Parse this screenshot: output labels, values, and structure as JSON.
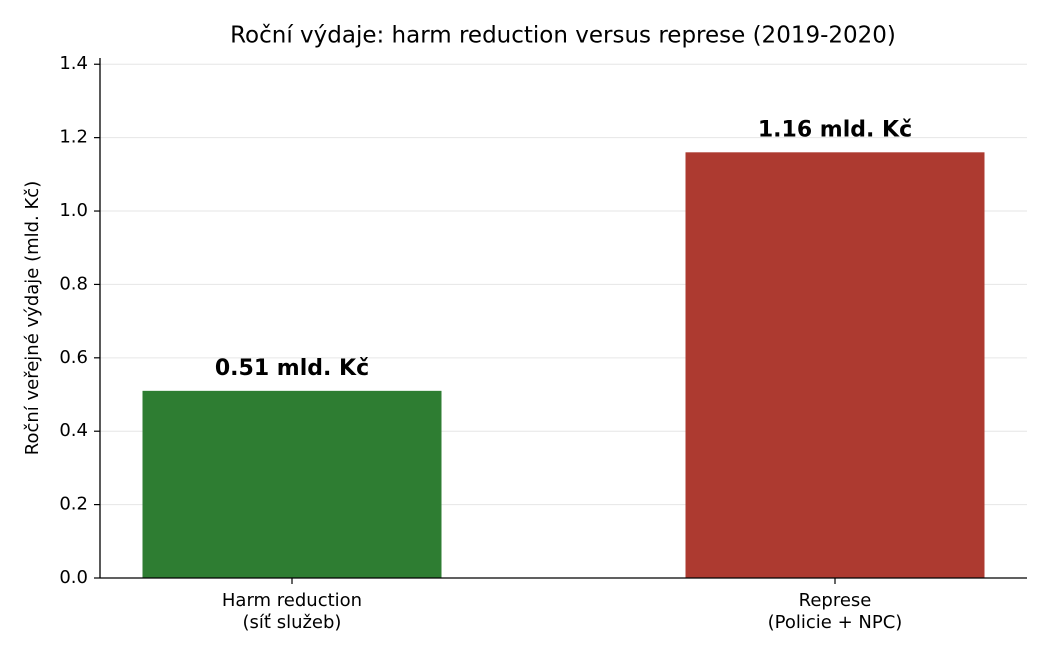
{
  "chart_data": {
    "type": "bar",
    "title": "Roční výdaje: harm reduction versus represe (2019-2020)",
    "ylabel": "Roční veřejné výdaje (mld. Kč)",
    "categories": [
      "Harm reduction\n(síť služeb)",
      "Represe\n(Policie + NPC)"
    ],
    "values": [
      0.51,
      1.16
    ],
    "value_labels": [
      "0.51 mld. Kč",
      "1.16 mld. Kč"
    ],
    "colors": [
      "#2e7d32",
      "#ad3a30"
    ],
    "ylim": [
      0,
      1.417
    ],
    "yticks": [
      {
        "value": 0,
        "label": "0.0"
      },
      0.2,
      0.4,
      0.6,
      0.8,
      {
        "value": 1,
        "label": "1.0"
      },
      1.2,
      1.4
    ],
    "grid": true
  }
}
